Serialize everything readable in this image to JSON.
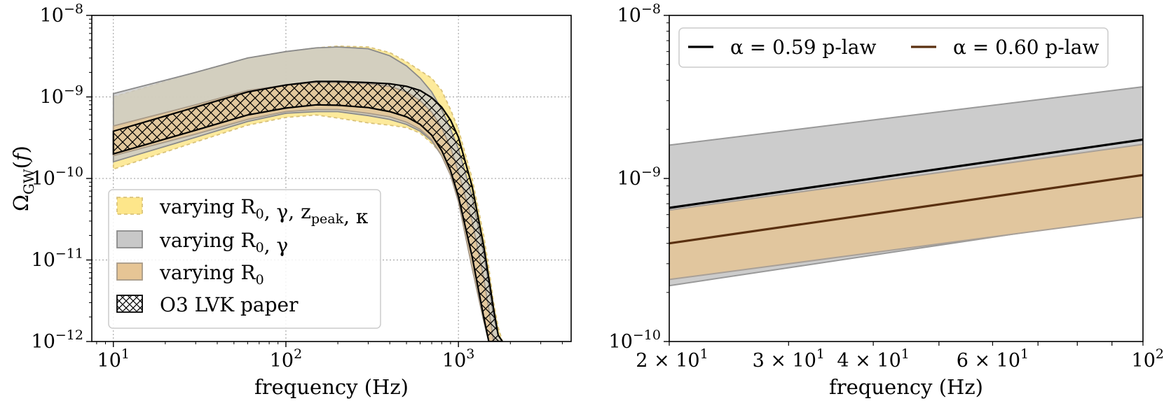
{
  "chart_data": [
    {
      "type": "area",
      "xscale": "log",
      "yscale": "log",
      "xlabel": "frequency (Hz)",
      "ylabel": "ΩGW(f)",
      "xlim": [
        7.5,
        4500
      ],
      "ylim": [
        1e-12,
        1e-08
      ],
      "grid": true,
      "legend_placement": "lower-left",
      "x_ticks": [
        {
          "value": 10,
          "base": "10",
          "exp": "1"
        },
        {
          "value": 100,
          "base": "10",
          "exp": "2"
        },
        {
          "value": 1000,
          "base": "10",
          "exp": "3"
        }
      ],
      "y_ticks": [
        {
          "value": 1e-08,
          "base": "10",
          "exp": "−8"
        },
        {
          "value": 1e-09,
          "base": "10",
          "exp": "−9"
        },
        {
          "value": 1e-10,
          "base": "10",
          "exp": "−10"
        },
        {
          "value": 1e-11,
          "base": "10",
          "exp": "−11"
        },
        {
          "value": 1e-12,
          "base": "10",
          "exp": "−12"
        }
      ],
      "series": [
        {
          "name": "varying R0, γ, zpeak, κ",
          "legend_parts": [
            [
              "varying ",
              ""
            ],
            [
              "R",
              "0"
            ],
            [
              ", γ, ",
              ""
            ],
            [
              "z",
              "peak"
            ],
            [
              ", κ",
              ""
            ]
          ],
          "color": "#fde68a",
          "edge_color": "#d9c27a",
          "style": "dashed",
          "x": [
            10,
            30,
            60,
            100,
            150,
            200,
            300,
            400,
            500,
            600,
            700,
            800,
            900,
            1000,
            1200,
            1400,
            1500,
            1600,
            1700,
            1800
          ],
          "upper": [
            1e-09,
            2e-09,
            3e-09,
            3.6e-09,
            4e-09,
            4.2e-09,
            4.1e-09,
            3.5e-09,
            2.7e-09,
            2.1e-09,
            1.7e-09,
            1.2e-09,
            7e-10,
            4e-10,
            1e-10,
            2e-11,
            8e-12,
            3e-12,
            1.5e-12,
            1e-12
          ],
          "lower": [
            1.3e-10,
            2.8e-10,
            4.5e-10,
            5.6e-10,
            6e-10,
            5.5e-10,
            4.8e-10,
            4.5e-10,
            4.2e-10,
            3.6e-10,
            2.7e-10,
            2e-10,
            1.2e-10,
            6e-11,
            1.5e-11,
            3e-12,
            1.5e-12,
            1e-12,
            1e-12,
            1e-12
          ]
        },
        {
          "name": "varying R0, γ",
          "legend_parts": [
            [
              "varying ",
              ""
            ],
            [
              "R",
              "0"
            ],
            [
              ", γ",
              ""
            ]
          ],
          "color": "#c8c8c8",
          "edge_color": "#8a8a8a",
          "style": "solid",
          "x": [
            10,
            30,
            60,
            100,
            150,
            200,
            300,
            400,
            500,
            600,
            700,
            800,
            900,
            1000,
            1200,
            1400,
            1500,
            1600,
            1700,
            1800
          ],
          "upper": [
            1.1e-09,
            2e-09,
            3e-09,
            3.6e-09,
            4e-09,
            4.1e-09,
            3.9e-09,
            3.2e-09,
            2.4e-09,
            1.7e-09,
            1.15e-09,
            7e-10,
            4e-10,
            2.3e-10,
            6e-11,
            1.2e-11,
            5e-12,
            2e-12,
            1.2e-12,
            1e-12
          ],
          "lower": [
            1.6e-10,
            3.2e-10,
            5e-10,
            6.3e-10,
            6.6e-10,
            6.6e-10,
            5.9e-10,
            5.3e-10,
            4.6e-10,
            3.8e-10,
            2.9e-10,
            1.9e-10,
            1.1e-10,
            5.2e-11,
            8e-12,
            1.8e-12,
            1e-12,
            1e-12,
            1e-12,
            1e-12
          ]
        },
        {
          "name": "varying R0",
          "legend_parts": [
            [
              "varying ",
              ""
            ],
            [
              "R",
              "0"
            ]
          ],
          "color": "#e6c595",
          "edge_color": "#a89a88",
          "style": "solid",
          "x": [
            10,
            30,
            60,
            100,
            150,
            200,
            300,
            400,
            500,
            600,
            700,
            800,
            900,
            1000,
            1200,
            1400,
            1500,
            1600,
            1700,
            1800
          ],
          "upper": [
            4.4e-10,
            8e-10,
            1.2e-09,
            1.4e-09,
            1.5e-09,
            1.5e-09,
            1.45e-09,
            1.35e-09,
            1.15e-09,
            9e-10,
            6.5e-10,
            4.2e-10,
            2.4e-10,
            1.2e-10,
            3e-11,
            6e-12,
            2.5e-12,
            1e-12,
            1e-12,
            1e-12
          ],
          "lower": [
            1.9e-10,
            3.5e-10,
            5.3e-10,
            6.6e-10,
            7e-10,
            7e-10,
            6.3e-10,
            5.7e-10,
            4.9e-10,
            4e-10,
            3e-10,
            1.9e-10,
            1.1e-10,
            5.2e-11,
            8e-12,
            1.8e-12,
            1e-12,
            1e-12,
            1e-12,
            1e-12
          ]
        },
        {
          "name": "O3 LVK paper",
          "legend_parts": [
            [
              "O3 LVK paper",
              ""
            ]
          ],
          "color": "none",
          "edge_color": "#000000",
          "style": "hatched",
          "x": [
            10,
            30,
            60,
            100,
            150,
            200,
            300,
            400,
            500,
            600,
            700,
            800,
            900,
            1000,
            1200,
            1400,
            1500,
            1600,
            1700,
            1800
          ],
          "upper": [
            3.8e-10,
            7.5e-10,
            1.15e-09,
            1.4e-09,
            1.55e-09,
            1.55e-09,
            1.5e-09,
            1.45e-09,
            1.35e-09,
            1.2e-09,
            9.8e-10,
            7.5e-10,
            5.2e-10,
            3.2e-10,
            8e-11,
            1.5e-11,
            6e-12,
            2.5e-12,
            1.2e-12,
            1e-12
          ],
          "lower": [
            2e-10,
            3.9e-10,
            6e-10,
            7.3e-10,
            8e-10,
            7.9e-10,
            7.4e-10,
            6.6e-10,
            5.7e-10,
            4.6e-10,
            3.4e-10,
            2.2e-10,
            1.25e-10,
            6e-11,
            1.1e-11,
            2e-12,
            1e-12,
            1e-12,
            1e-12,
            1e-12
          ]
        }
      ]
    },
    {
      "type": "line",
      "xscale": "log",
      "yscale": "log",
      "xlabel": "frequency (Hz)",
      "ylabel": "",
      "xlim": [
        20,
        100
      ],
      "ylim": [
        1e-10,
        1e-08
      ],
      "grid": false,
      "legend_placement": "top",
      "x_ticks": [
        {
          "value": 20,
          "base": "2 × 10",
          "exp": "1"
        },
        {
          "value": 30,
          "base": "3 × 10",
          "exp": "1"
        },
        {
          "value": 40,
          "base": "4 × 10",
          "exp": "1"
        },
        {
          "value": 60,
          "base": "6 × 10",
          "exp": "1"
        },
        {
          "value": 100,
          "base": "10",
          "exp": "2"
        }
      ],
      "y_ticks": [
        {
          "value": 1e-08,
          "base": "10",
          "exp": "−8"
        },
        {
          "value": 1e-09,
          "base": "10",
          "exp": "−9"
        },
        {
          "value": 1e-10,
          "base": "10",
          "exp": "−10"
        }
      ],
      "series": [
        {
          "name": "α = 0.59 p-law",
          "color": "#000000",
          "x": [
            20,
            100
          ],
          "y": [
            6.6e-10,
            1.73e-09
          ],
          "band": {
            "color": "#cccccc",
            "edge_color": "#999999",
            "x": [
              20,
              100
            ],
            "upper": [
              1.6e-09,
              3.65e-09
            ],
            "lower": [
              2.2e-10,
              6e-10
            ]
          }
        },
        {
          "name": "α = 0.60 p-law",
          "color": "#5a3010",
          "x": [
            20,
            100
          ],
          "y": [
            4e-10,
            1.05e-09
          ],
          "band": {
            "color": "#e1c69e",
            "edge_color": "#a8a098",
            "x": [
              20,
              100
            ],
            "upper": [
              6.4e-10,
              1.62e-09
            ],
            "lower": [
              2.4e-10,
              5.8e-10
            ]
          }
        }
      ]
    }
  ]
}
